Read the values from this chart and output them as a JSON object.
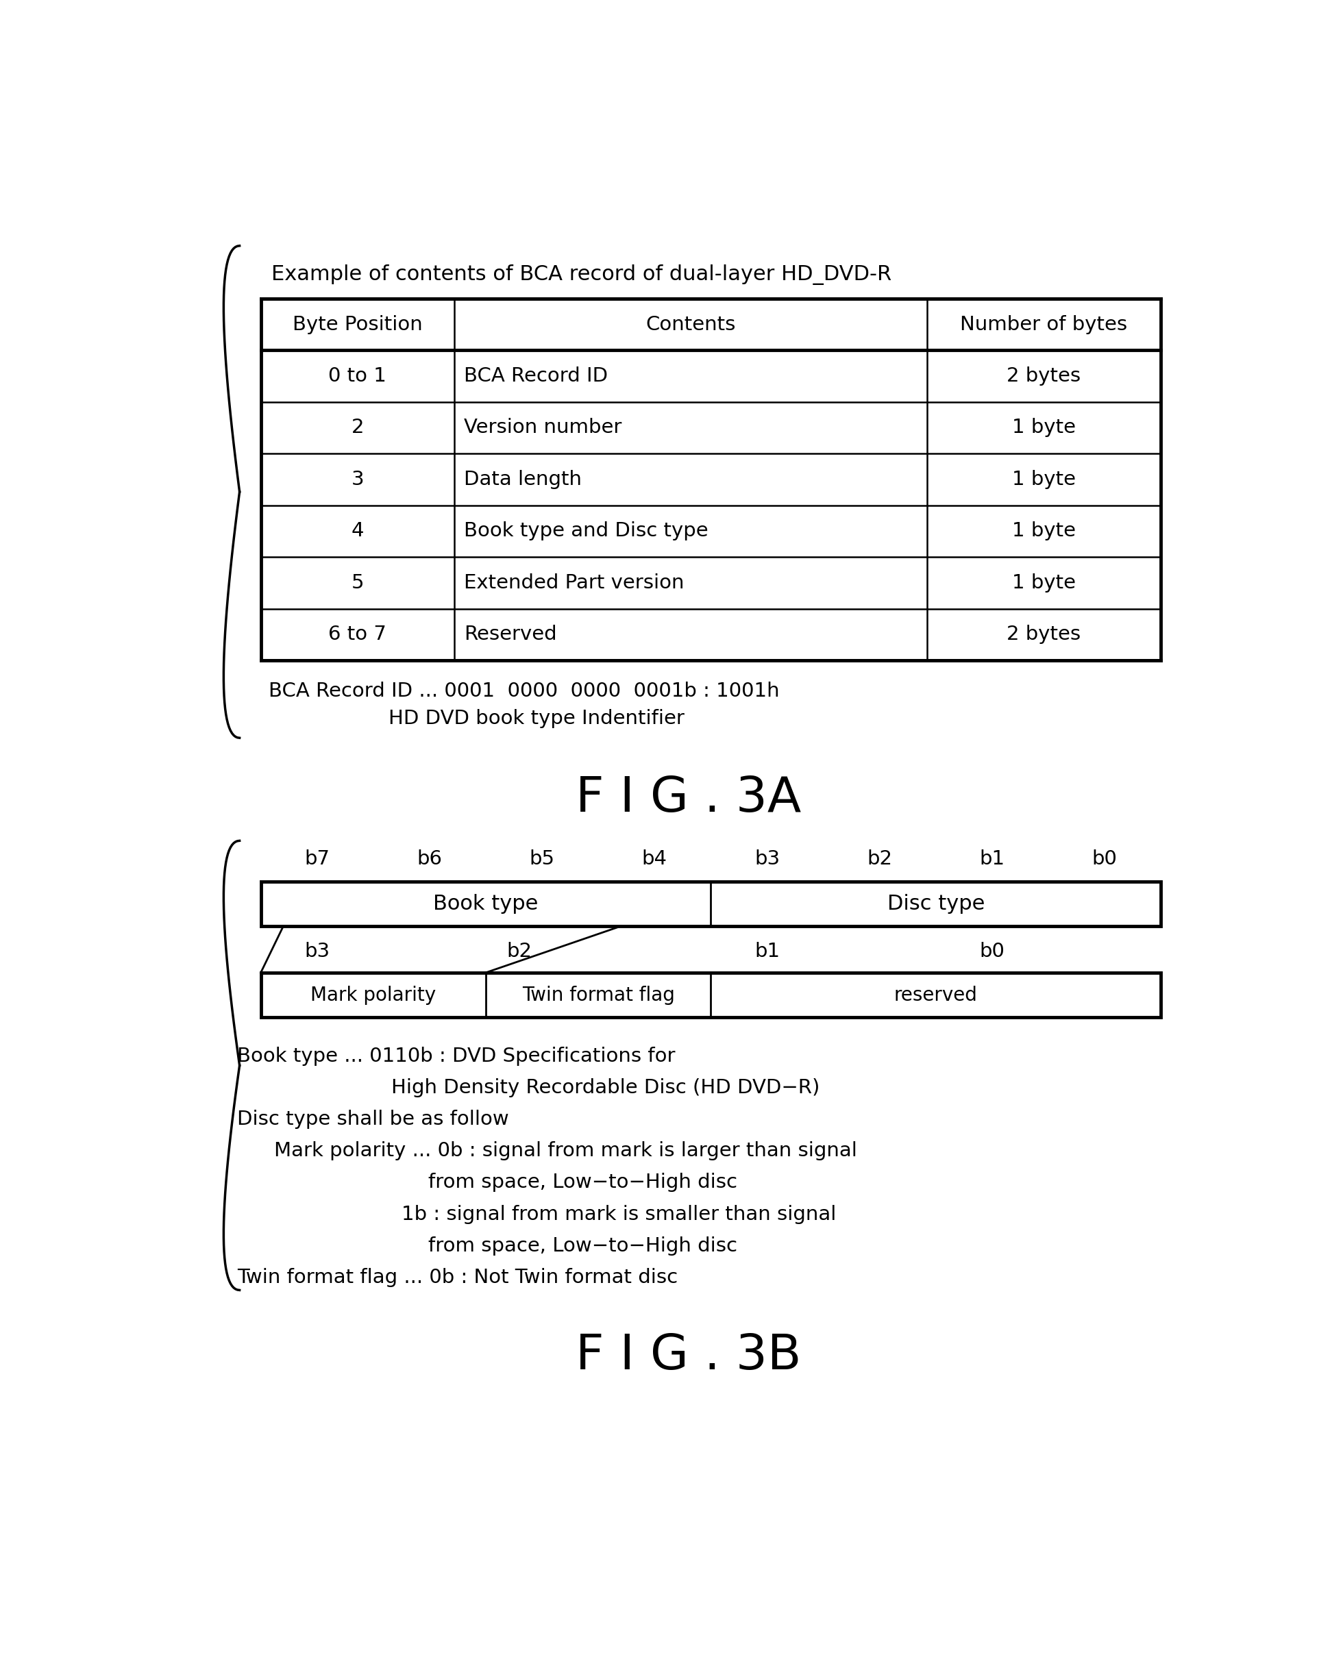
{
  "fig3a_title": "Example of contents of BCA record of dual-layer HD_DVD-R",
  "fig3a_headers": [
    "Byte Position",
    "Contents",
    "Number of bytes"
  ],
  "fig3a_rows": [
    [
      "0 to 1",
      "BCA Record ID",
      "2 bytes"
    ],
    [
      "2",
      "Version number",
      "1 byte"
    ],
    [
      "3",
      "Data length",
      "1 byte"
    ],
    [
      "4",
      "Book type and Disc type",
      "1 byte"
    ],
    [
      "5",
      "Extended Part version",
      "1 byte"
    ],
    [
      "6 to 7",
      "Reserved",
      "2 bytes"
    ]
  ],
  "fig3a_note1": "BCA Record ID ... 0001  0000  0000  0001b : 1001h",
  "fig3a_note2": "HD DVD book type Indentifier",
  "fig3a_label": "F I G . 3A",
  "fig3b_bits": [
    "b7",
    "b6",
    "b5",
    "b4",
    "b3",
    "b2",
    "b1",
    "b0"
  ],
  "fig3b_row1_left": "Book type",
  "fig3b_row1_right": "Disc type",
  "fig3b_sub_bits": [
    [
      0.5,
      "b3"
    ],
    [
      2.0,
      "b2"
    ],
    [
      4.5,
      "b1"
    ],
    [
      6.5,
      "b0"
    ]
  ],
  "fig3b_row2_cols": [
    [
      "Mark polarity",
      2
    ],
    [
      "Twin format flag",
      2
    ],
    [
      "reserved",
      4
    ]
  ],
  "fig3b_diag_lines": [
    [
      0.0,
      2.0
    ],
    [
      3.0,
      4.0
    ]
  ],
  "fig3b_notes": [
    [
      "left",
      130,
      "Book type ... 0110b : DVD Specifications for"
    ],
    [
      "left",
      370,
      "High Density Recordable Disc (HD DVD-R)"
    ],
    [
      "left",
      130,
      "Disc type shall be as follow"
    ],
    [
      "left",
      200,
      "Mark polarity ... 0b : signal from mark is larger than signal"
    ],
    [
      "left",
      440,
      "from space, Low-to-High disc"
    ],
    [
      "left",
      440,
      "1b : signal from mark is smaller than signal"
    ],
    [
      "left",
      440,
      "from space, Low-to-High disc"
    ],
    [
      "left",
      130,
      "Twin format flag ... 0b : Not Twin format disc"
    ]
  ],
  "fig3b_label": "F I G . 3B",
  "bg_color": "#ffffff",
  "text_color": "#000000"
}
